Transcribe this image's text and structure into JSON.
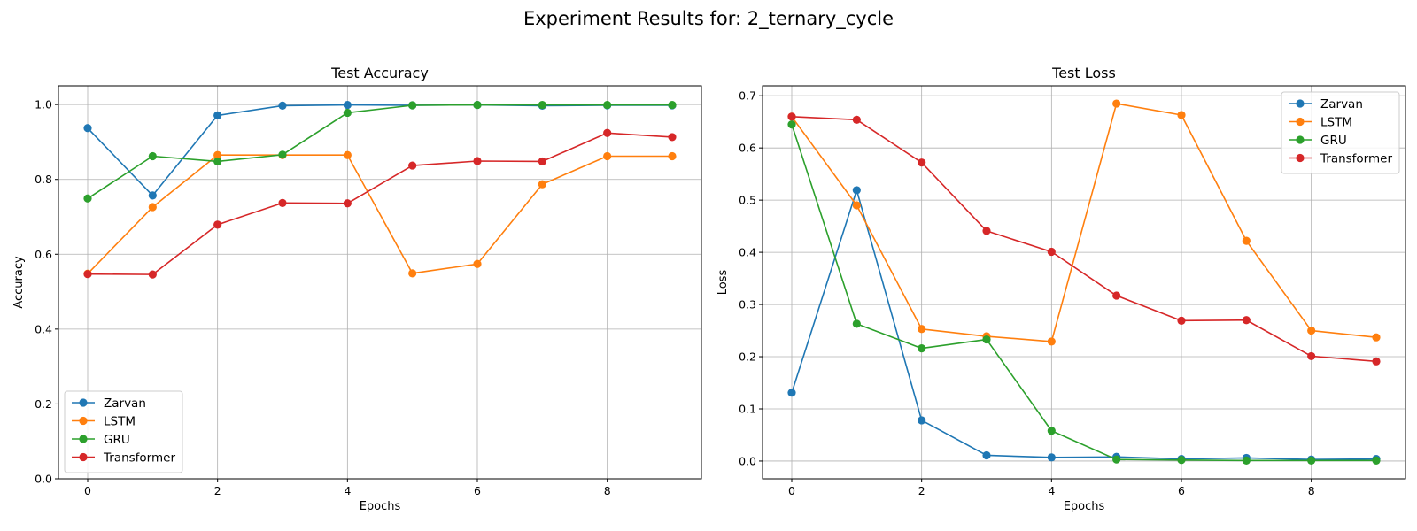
{
  "suptitle": "Experiment Results for: 2_ternary_cycle",
  "chart_data": [
    {
      "type": "line",
      "title": "Test Accuracy",
      "xlabel": "Epochs",
      "ylabel": "Accuracy",
      "xlim": [
        -0.45,
        9.45
      ],
      "ylim": [
        0.0,
        1.05
      ],
      "xticks": [
        0,
        2,
        4,
        6,
        8
      ],
      "yticks": [
        0.0,
        0.2,
        0.4,
        0.6,
        0.8,
        1.0
      ],
      "xtick_labels": [
        "0",
        "2",
        "4",
        "6",
        "8"
      ],
      "ytick_labels": [
        "0.0",
        "0.2",
        "0.4",
        "0.6",
        "0.8",
        "1.0"
      ],
      "grid": true,
      "legend_position": "lower-left",
      "x": [
        0,
        1,
        2,
        3,
        4,
        5,
        6,
        7,
        8,
        9
      ],
      "series": [
        {
          "name": "Zarvan",
          "color": "#1f77b4",
          "values": [
            0.937,
            0.757,
            0.971,
            0.997,
            0.999,
            0.998,
            0.999,
            0.997,
            0.998,
            0.998
          ]
        },
        {
          "name": "LSTM",
          "color": "#ff7f0e",
          "values": [
            0.548,
            0.726,
            0.865,
            0.865,
            0.865,
            0.549,
            0.574,
            0.787,
            0.862,
            0.862
          ]
        },
        {
          "name": "GRU",
          "color": "#2ca02c",
          "values": [
            0.749,
            0.862,
            0.848,
            0.866,
            0.978,
            0.998,
            0.999,
            0.999,
            0.999,
            0.999
          ]
        },
        {
          "name": "Transformer",
          "color": "#d62728",
          "values": [
            0.547,
            0.546,
            0.679,
            0.737,
            0.736,
            0.837,
            0.849,
            0.848,
            0.924,
            0.913
          ]
        }
      ]
    },
    {
      "type": "line",
      "title": "Test Loss",
      "xlabel": "Epochs",
      "ylabel": "Loss",
      "xlim": [
        -0.45,
        9.45
      ],
      "ylim": [
        -0.034,
        0.719
      ],
      "xticks": [
        0,
        2,
        4,
        6,
        8
      ],
      "yticks": [
        0.0,
        0.1,
        0.2,
        0.3,
        0.4,
        0.5,
        0.6,
        0.7
      ],
      "xtick_labels": [
        "0",
        "2",
        "4",
        "6",
        "8"
      ],
      "ytick_labels": [
        "0.0",
        "0.1",
        "0.2",
        "0.3",
        "0.4",
        "0.5",
        "0.6",
        "0.7"
      ],
      "grid": true,
      "legend_position": "upper-right",
      "x": [
        0,
        1,
        2,
        3,
        4,
        5,
        6,
        7,
        8,
        9
      ],
      "series": [
        {
          "name": "Zarvan",
          "color": "#1f77b4",
          "values": [
            0.131,
            0.519,
            0.078,
            0.011,
            0.007,
            0.008,
            0.004,
            0.006,
            0.003,
            0.004
          ]
        },
        {
          "name": "LSTM",
          "color": "#ff7f0e",
          "values": [
            0.66,
            0.49,
            0.253,
            0.239,
            0.229,
            0.685,
            0.663,
            0.422,
            0.25,
            0.237
          ]
        },
        {
          "name": "GRU",
          "color": "#2ca02c",
          "values": [
            0.645,
            0.263,
            0.216,
            0.233,
            0.058,
            0.003,
            0.002,
            0.001,
            0.001,
            0.001
          ]
        },
        {
          "name": "Transformer",
          "color": "#d62728",
          "values": [
            0.66,
            0.654,
            0.572,
            0.441,
            0.401,
            0.317,
            0.269,
            0.27,
            0.201,
            0.191
          ]
        }
      ]
    }
  ]
}
